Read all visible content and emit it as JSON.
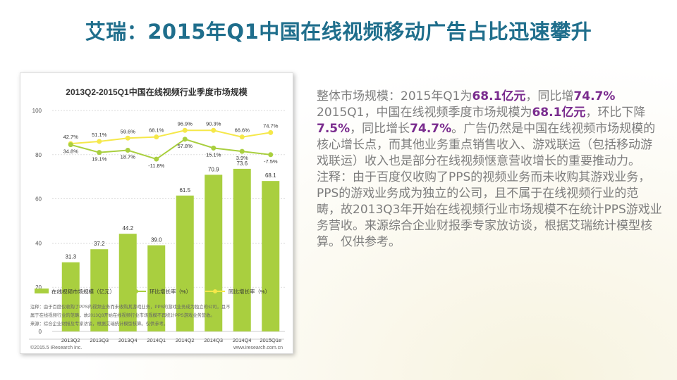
{
  "slide": {
    "title": "艾瑞：2015年Q1中国在线视频移动广告占比迅速攀升"
  },
  "chart_data": {
    "type": "bar",
    "title": "2013Q2-2015Q1中国在线视频行业季度市场规模",
    "categories": [
      "2013Q2",
      "2013Q3",
      "2013Q4",
      "2014Q1",
      "2014Q2",
      "2014Q3",
      "2014Q4",
      "2015Q1e"
    ],
    "ylim": [
      0,
      100
    ],
    "yticks": [
      0,
      20,
      40,
      60,
      80,
      100
    ],
    "grid": true,
    "legend_position": "bottom",
    "series": [
      {
        "name": "在线视频市场规模（亿元）",
        "kind": "bar",
        "values": [
          31.3,
          37.2,
          44.2,
          39.0,
          61.5,
          70.9,
          73.6,
          68.1
        ],
        "labels": [
          "31.3",
          "37.2",
          "44.2",
          "39.0",
          "61.5",
          "70.9",
          "73.6",
          "68.1"
        ]
      },
      {
        "name": "环比增长率（%）",
        "kind": "line",
        "plot_y": [
          84.5,
          81,
          82,
          78,
          87,
          83,
          81.5,
          80
        ],
        "labels": [
          "34.8%",
          "19.1%",
          "18.7%",
          "-11.8%",
          "57.8%",
          "15.1%",
          "3.9%",
          "-7.5%"
        ]
      },
      {
        "name": "同比增长率（%）",
        "kind": "line",
        "plot_y": [
          85,
          86,
          87.5,
          88,
          91,
          91,
          88,
          90
        ],
        "labels": [
          "42.7%",
          "51.1%",
          "59.6%",
          "68.1%",
          "96.9%",
          "90.3%",
          "66.6%",
          "74.7%"
        ]
      }
    ],
    "colors": {
      "bar": "#a9cf3f",
      "mom": "#a9cf3f",
      "yoy": "#f5e84a",
      "grid": "#cccccc"
    },
    "footnote_lines": [
      "注释：由于百度仅收购了PPS的视频业务而未收购其游戏业务，PPS的游戏业务成为独立的公司，且不",
      "属于在线视频行业的范畴，故2013Q3开始在线视频行业市场规模不再统计PPS游戏业务营收。",
      "来源：综合企业财报及专家访谈，根据艾瑞统计模型核算。仅供参考。"
    ],
    "copyright": "©2015.5 iResearch Inc.",
    "website": "www.iresearch.com.cn"
  },
  "text": {
    "p1_a": "整体市场规模：2015年Q1为",
    "p1_b": "68.1亿元",
    "p1_c": "，同比增",
    "p1_d": "74.7%",
    "p2_a": "2015Q1，中国在线视频季度市场规模为",
    "p2_b": "68.1亿元",
    "p2_c": "，环比下降",
    "p2_d": "7.5%",
    "p2_e": "，同比增长",
    "p2_f": "74.7%",
    "p2_g": "。广告仍然是中国在线视频市场规模的核心增长点，而其他业务重点销售收入、游戏联运（包括移动游戏联运）收入也是部分在线视频惬意营收增长的重要推动力。",
    "p3": "注释：由于百度仅收购了PPS的视频业务而未收购其游戏业务，PPS的游戏业务成为独立的公司，且不属于在线视频行业的范畴，故2013Q3年开始在线视频行业市场规模不在统计PPS游戏业务营收。来源综合企业财报季专家放访谈，根据艾瑞统计模型核算。仅供参考。"
  }
}
